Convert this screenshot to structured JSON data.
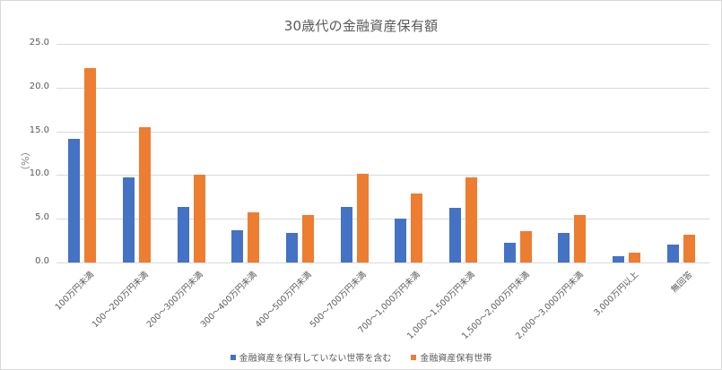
{
  "chart_data": {
    "type": "bar",
    "title": "30歳代の金融資産保有額",
    "xlabel": "",
    "ylabel": "（%）",
    "ylim": [
      0,
      25
    ],
    "yticks": [
      "0.0",
      "5.0",
      "10.0",
      "15.0",
      "20.0",
      "25.0"
    ],
    "grid": true,
    "legend_position": "bottom",
    "categories": [
      "100万円未満",
      "100～200万円未満",
      "200～300万円未満",
      "300～400万円未満",
      "400～500万円未満",
      "500～700万円未満",
      "700～1,000万円未満",
      "1,000～1,500万円未満",
      "1,500～2,000万円未満",
      "2,000～3,000万円未満",
      "3,000万円以上",
      "無回答"
    ],
    "series": [
      {
        "name": "金融資産を保有していない世帯を含む",
        "color": "#4472c4",
        "values": [
          14.1,
          9.7,
          6.4,
          3.7,
          3.4,
          6.4,
          5.0,
          6.2,
          2.3,
          3.4,
          0.7,
          2.1
        ]
      },
      {
        "name": "金融資産保有世帯",
        "color": "#ed7d31",
        "values": [
          22.2,
          15.5,
          10.0,
          5.7,
          5.4,
          10.1,
          7.9,
          9.7,
          3.6,
          5.4,
          1.1,
          3.2
        ]
      }
    ]
  }
}
